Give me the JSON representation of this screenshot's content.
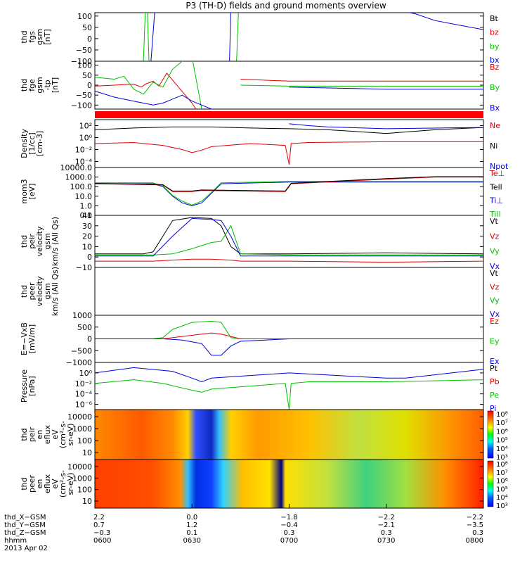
{
  "title": "P3 (TH-D) fields and ground moments overview",
  "chart_data": [
    {
      "type": "line",
      "ylabel": [
        "thd",
        "fgs",
        "gsm",
        "[nT]"
      ],
      "yticks": [
        "100",
        "50",
        "0",
        "−50",
        "−100"
      ],
      "ylim": [
        -100,
        115
      ],
      "legend": [
        {
          "text": "Bt",
          "color": "#000000"
        },
        {
          "text": "bz",
          "color": "#e00000"
        },
        {
          "text": "by",
          "color": "#00c000"
        },
        {
          "text": "bx",
          "color": "#0000e0"
        }
      ],
      "series": [
        {
          "name": "bx",
          "color": "#0000e0",
          "x": [
            6.0,
            6.25,
            6.28,
            6.31,
            6.32,
            6.38,
            6.68,
            6.68,
            6.69,
            6.7,
            7.47,
            7.65,
            7.75,
            8.0
          ],
          "y": [
            null,
            null,
            -200,
            140,
            null,
            null,
            null,
            null,
            -200,
            140,
            140,
            110,
            80,
            40
          ]
        },
        {
          "name": "by",
          "color": "#00c000",
          "x": [
            6.24,
            6.25,
            6.26,
            6.27,
            6.28,
            6.72,
            6.73,
            6.74
          ],
          "y": [
            -140,
            -100,
            130,
            130,
            -140,
            -140,
            -90,
            140
          ]
        }
      ]
    },
    {
      "type": "line",
      "ylabel": [
        "thd",
        "fge",
        "gsm",
        "-tp",
        "[nT]"
      ],
      "yticks": [
        "100",
        "50",
        "0",
        "−50",
        "−100"
      ],
      "ylim": [
        -120,
        120
      ],
      "legend": [
        {
          "text": "Bz",
          "color": "#e00000"
        },
        {
          "text": "By",
          "color": "#00c000"
        },
        {
          "text": "Bx",
          "color": "#0000e0"
        }
      ],
      "series": [
        {
          "name": "Bz",
          "color": "#e00000",
          "x": [
            6.0,
            6.1,
            6.2,
            6.24,
            6.26,
            6.3,
            6.33,
            6.37,
            6.5,
            6.52,
            6.53,
            6.6,
            6.65,
            6.7,
            6.75,
            7.0,
            7.5,
            8.0
          ],
          "y": [
            -5,
            0,
            5,
            -10,
            5,
            20,
            -5,
            60,
            -90,
            -120,
            null,
            null,
            null,
            null,
            30,
            20,
            20,
            20
          ]
        },
        {
          "name": "By",
          "color": "#00c000",
          "x": [
            6.0,
            6.05,
            6.1,
            6.15,
            6.2,
            6.25,
            6.3,
            6.35,
            6.4,
            6.45,
            6.5,
            6.55,
            6.7,
            6.75,
            7.0,
            7.5,
            8.0
          ],
          "y": [
            40,
            35,
            30,
            45,
            -20,
            -45,
            15,
            -10,
            80,
            120,
            140,
            -120,
            null,
            0,
            -5,
            -5,
            -5
          ]
        },
        {
          "name": "Bx",
          "color": "#0000e0",
          "x": [
            6.0,
            6.1,
            6.2,
            6.3,
            6.35,
            6.4,
            6.45,
            6.5,
            6.55,
            6.6,
            6.75,
            7.0,
            7.5,
            8.0
          ],
          "y": [
            -30,
            -60,
            -80,
            -100,
            -90,
            -70,
            -50,
            -80,
            -100,
            -120,
            null,
            -10,
            -20,
            -20
          ]
        }
      ]
    },
    {
      "type": "band",
      "color": "#ff0000"
    },
    {
      "type": "line",
      "ylabel": [
        "Density",
        "[1/cc]",
        "[cm-3]"
      ],
      "yticks": [
        "10²",
        "10⁰",
        "10⁻²",
        "10⁻⁴"
      ],
      "yticks_log": [
        2,
        0,
        -2,
        -4
      ],
      "ylog": true,
      "ylim": [
        -5,
        3
      ],
      "legend": [
        {
          "text": "Ne",
          "color": "#e00000"
        },
        {
          "text": "Ni",
          "color": "#000000"
        },
        {
          "text": "Npot",
          "color": "#0000e0"
        }
      ],
      "series": [
        {
          "name": "Ne",
          "color": "#e00000",
          "x": [
            6.0,
            6.2,
            6.35,
            6.45,
            6.5,
            6.55,
            6.6,
            6.8,
            6.98,
            7.0,
            7.01,
            7.1,
            7.5,
            7.75,
            8.0
          ],
          "y": [
            0.1,
            0.15,
            0.05,
            0.01,
            0.003,
            0.008,
            0.03,
            0.1,
            0.05,
            3e-05,
            0.1,
            0.15,
            0.2,
            0.2,
            0.2
          ]
        },
        {
          "name": "Ni",
          "color": "#000000",
          "x": [
            6.0,
            6.2,
            6.4,
            6.6,
            6.8,
            7.0,
            7.2,
            7.5,
            7.75,
            8.0
          ],
          "y": [
            20,
            40,
            60,
            60,
            40,
            30,
            20,
            5,
            20,
            50
          ]
        },
        {
          "name": "Npot",
          "color": "#0000e0",
          "x": [
            6.0,
            6.3,
            6.5,
            7.0,
            7.1,
            7.2,
            7.5,
            8.0
          ],
          "y": [
            null,
            null,
            null,
            200,
            100,
            60,
            30,
            50
          ]
        }
      ]
    },
    {
      "type": "line",
      "ylabel": [
        "mom3",
        "[eV]"
      ],
      "yticks": [
        "10000.0",
        "1000.0",
        "100.0",
        "10.0",
        "1.0",
        "0.1"
      ],
      "yticks_log": [
        4,
        3,
        2,
        1,
        0,
        -1
      ],
      "ylog": true,
      "ylim": [
        -1,
        4
      ],
      "legend": [
        {
          "text": "Te⊥",
          "color": "#e00000"
        },
        {
          "text": "Tell",
          "color": "#000000"
        },
        {
          "text": "Ti⊥",
          "color": "#0000e0"
        },
        {
          "text": "Till",
          "color": "#00c000"
        }
      ],
      "series": [
        {
          "name": "Ti⊥",
          "color": "#0000e0",
          "x": [
            6.0,
            6.3,
            6.35,
            6.4,
            6.45,
            6.5,
            6.55,
            6.6,
            6.65,
            7.0,
            7.5,
            8.0
          ],
          "y": [
            200,
            200,
            100,
            10,
            2,
            1,
            2,
            20,
            200,
            300,
            300,
            300
          ]
        },
        {
          "name": "Till",
          "color": "#00c000",
          "x": [
            6.0,
            6.3,
            6.35,
            6.4,
            6.45,
            6.5,
            6.55,
            6.6,
            6.65,
            7.0,
            7.5,
            8.0
          ],
          "y": [
            250,
            250,
            120,
            12,
            3,
            1.2,
            3,
            25,
            250,
            350,
            350,
            350
          ]
        },
        {
          "name": "Te⊥",
          "color": "#e00000",
          "x": [
            6.0,
            6.35,
            6.4,
            6.5,
            6.55,
            6.98,
            7.0,
            7.01,
            7.5,
            7.75,
            8.0
          ],
          "y": [
            200,
            150,
            30,
            30,
            40,
            30,
            100,
            200,
            600,
            1000,
            1000
          ]
        },
        {
          "name": "Tell",
          "color": "#000000",
          "x": [
            6.0,
            6.35,
            6.4,
            6.5,
            6.55,
            6.98,
            7.0,
            7.01,
            7.5,
            7.75,
            8.0
          ],
          "y": [
            220,
            160,
            35,
            35,
            45,
            35,
            120,
            220,
            700,
            1100,
            1100
          ]
        }
      ]
    },
    {
      "type": "line",
      "ylabel": [
        "thd",
        "peir",
        "velocity",
        "gsm",
        "km/s (All Qs)"
      ],
      "yticks": [
        "40",
        "30",
        "20",
        "10",
        "0",
        "−10"
      ],
      "ylim": [
        -10,
        40
      ],
      "legend": [
        {
          "text": "Vt",
          "color": "#000000"
        },
        {
          "text": "Vz",
          "color": "#e00000"
        },
        {
          "text": "Vy",
          "color": "#00c000"
        },
        {
          "text": "Vx",
          "color": "#0000e0"
        }
      ],
      "series": [
        {
          "name": "Vt",
          "color": "#000000",
          "x": [
            6.0,
            6.25,
            6.3,
            6.35,
            6.4,
            6.5,
            6.6,
            6.65,
            6.7,
            6.75,
            7.0,
            7.5,
            8.0
          ],
          "y": [
            3,
            3,
            5,
            20,
            35,
            38,
            37,
            30,
            10,
            3,
            3,
            4,
            3
          ]
        },
        {
          "name": "Vy",
          "color": "#00c000",
          "x": [
            6.0,
            6.3,
            6.4,
            6.5,
            6.6,
            6.65,
            6.7,
            6.75,
            7.0,
            7.5,
            8.0
          ],
          "y": [
            2,
            2,
            3,
            8,
            14,
            15,
            30,
            3,
            2,
            2,
            2
          ]
        },
        {
          "name": "Vz",
          "color": "#e00000",
          "x": [
            6.0,
            6.3,
            6.4,
            6.5,
            6.6,
            6.7,
            6.75,
            7.0,
            7.5,
            8.0
          ],
          "y": [
            -4,
            -4,
            -3,
            -2,
            -2,
            -3,
            -4,
            -4,
            -5,
            -4
          ]
        },
        {
          "name": "Vx",
          "color": "#0000e0",
          "x": [
            6.0,
            6.3,
            6.4,
            6.5,
            6.6,
            6.65,
            6.7,
            6.75,
            7.0,
            8.0
          ],
          "y": [
            1,
            1,
            20,
            37,
            36,
            35,
            20,
            1,
            1,
            1
          ]
        }
      ]
    },
    {
      "type": "line",
      "ylabel": [
        "thd",
        "peer",
        "velocity",
        "gsm",
        "km/s (All Qs)"
      ],
      "yticks": [],
      "ylim": [
        -10,
        40
      ],
      "legend": [
        {
          "text": "Vt",
          "color": "#000000"
        },
        {
          "text": "Vz",
          "color": "#e00000"
        },
        {
          "text": "Vy",
          "color": "#00c000"
        },
        {
          "text": "Vx",
          "color": "#0000e0"
        }
      ],
      "series": []
    },
    {
      "type": "line",
      "ylabel": [
        "E=−VxB",
        "[mV/m]"
      ],
      "yticks": [
        "1000",
        "500",
        "0",
        "−500",
        "−1000"
      ],
      "ylim": [
        -1000,
        1000
      ],
      "legend": [
        {
          "text": "Ez",
          "color": "#e00000"
        },
        {
          "text": "Ey",
          "color": "#00c000"
        },
        {
          "text": "Ex",
          "color": "#0000e0"
        }
      ],
      "series": [
        {
          "name": "Ey",
          "color": "#00c000",
          "x": [
            6.0,
            6.3,
            6.35,
            6.4,
            6.5,
            6.6,
            6.65,
            6.7,
            6.75,
            7.0,
            8.0
          ],
          "y": [
            0,
            0,
            50,
            400,
            700,
            750,
            700,
            50,
            0,
            0,
            0
          ]
        },
        {
          "name": "Ez",
          "color": "#e00000",
          "x": [
            6.0,
            6.35,
            6.45,
            6.55,
            6.6,
            6.65,
            6.7,
            6.75,
            7.0,
            8.0
          ],
          "y": [
            0,
            0,
            100,
            200,
            250,
            200,
            100,
            0,
            0,
            0
          ]
        },
        {
          "name": "Ex",
          "color": "#0000e0",
          "x": [
            6.0,
            6.35,
            6.45,
            6.55,
            6.6,
            6.65,
            6.7,
            6.75,
            7.0,
            8.0
          ],
          "y": [
            0,
            0,
            -50,
            -200,
            -700,
            -700,
            -300,
            -100,
            0,
            0
          ]
        }
      ]
    },
    {
      "type": "line",
      "ylabel": [
        "Pressure",
        "[nPa]"
      ],
      "yticks": [
        "10⁰",
        "10⁻²",
        "10⁻⁴",
        "10⁻⁶"
      ],
      "yticks_log": [
        0,
        -2,
        -4,
        -6
      ],
      "ylog": true,
      "ylim": [
        -7,
        2
      ],
      "legend": [
        {
          "text": "Pt",
          "color": "#000000"
        },
        {
          "text": "Pb",
          "color": "#e00000"
        },
        {
          "text": "Pe",
          "color": "#00c000"
        },
        {
          "text": "Pi",
          "color": "#0000e0"
        }
      ],
      "series": [
        {
          "name": "Pi",
          "color": "#0000e0",
          "x": [
            6.0,
            6.2,
            6.4,
            6.5,
            6.55,
            6.6,
            7.0,
            7.5,
            7.6,
            8.0
          ],
          "y": [
            1,
            10,
            2,
            0.1,
            0.02,
            0.1,
            1,
            0.1,
            0.1,
            5
          ]
        },
        {
          "name": "Pe",
          "color": "#00c000",
          "x": [
            6.0,
            6.2,
            6.35,
            6.5,
            6.55,
            6.6,
            6.98,
            7.0,
            7.01,
            7.1,
            7.5,
            8.0
          ],
          "y": [
            0.01,
            0.05,
            0.01,
            0.0005,
            0.0002,
            0.0008,
            0.01,
            1e-07,
            0.01,
            0.02,
            0.02,
            0.05
          ]
        }
      ]
    },
    {
      "type": "heatmap",
      "ylabel": [
        "thd",
        "peir",
        "en",
        "eflux",
        "eV",
        "(cm²-s-",
        "sr-eV)"
      ],
      "yticks": [
        "10000",
        "1000",
        "100",
        "10"
      ],
      "colorbar_ticks": [
        "10⁸",
        "10⁷",
        "10⁶",
        "10⁵",
        "10⁴",
        "10³"
      ]
    },
    {
      "type": "heatmap",
      "ylabel": [
        "thd",
        "peer",
        "en",
        "eflux",
        "eV",
        "(cm²-s-",
        "sr-eV)"
      ],
      "yticks": [
        "10000",
        "1000",
        "100",
        "10"
      ],
      "colorbar_ticks": [
        "10⁸",
        "10⁷",
        "10⁶",
        "10⁵",
        "10⁴",
        "10³"
      ]
    }
  ],
  "xaxis": {
    "xlim": [
      6.0,
      8.0
    ],
    "rows": [
      {
        "label": "thd_X−GSM",
        "values": [
          "2.2",
          "0.0",
          "−1.8",
          "−2.2",
          "−2.2"
        ]
      },
      {
        "label": "thd_Y−GSM",
        "values": [
          "0.7",
          "1.2",
          "−0.4",
          "−2.1",
          "−3.5"
        ]
      },
      {
        "label": "thd_Z−GSM",
        "values": [
          "−0.3",
          "0.1",
          "0.3",
          "0.3",
          "0.3"
        ]
      },
      {
        "label": "hhmm",
        "values": [
          "0600",
          "0630",
          "0700",
          "0730",
          "0800"
        ]
      }
    ],
    "date": "2013 Apr 02"
  }
}
